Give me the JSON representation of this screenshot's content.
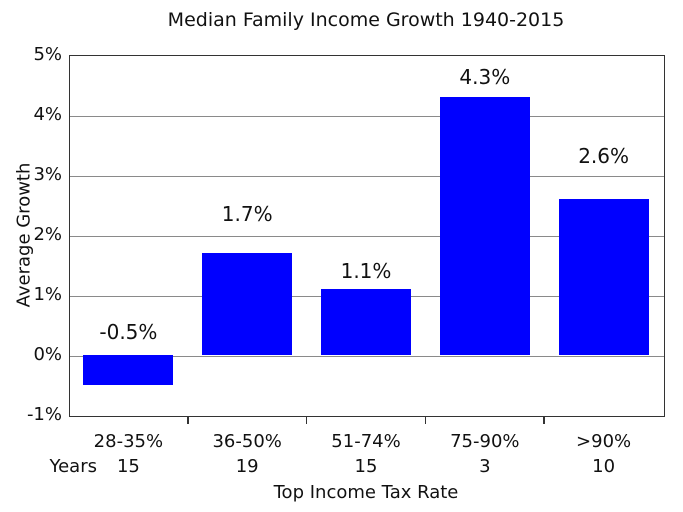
{
  "chart_data": {
    "type": "bar",
    "title": "Median Family Income Growth 1940-2015",
    "xlabel": "Top Income Tax Rate",
    "ylabel": "Average Growth",
    "categories": [
      "28-35%",
      "36-50%",
      "51-74%",
      "75-90%",
      ">90%"
    ],
    "values": [
      -0.5,
      1.7,
      1.1,
      4.3,
      2.6
    ],
    "bar_labels": [
      "-0.5%",
      "1.7%",
      "1.1%",
      "4.3%",
      "2.6%"
    ],
    "years_row_label": "Years",
    "years": [
      "15",
      "19",
      "15",
      "3",
      "10"
    ],
    "ylim": [
      -1,
      5
    ],
    "ytick_labels": [
      "5%",
      "4%",
      "3%",
      "2%",
      "1%",
      "0%",
      "-1%"
    ],
    "grid": true,
    "legend": "none",
    "bar_color": "#0000FF",
    "gridline_color": "#8a8a8a",
    "background_color": "#FFFFFF"
  }
}
